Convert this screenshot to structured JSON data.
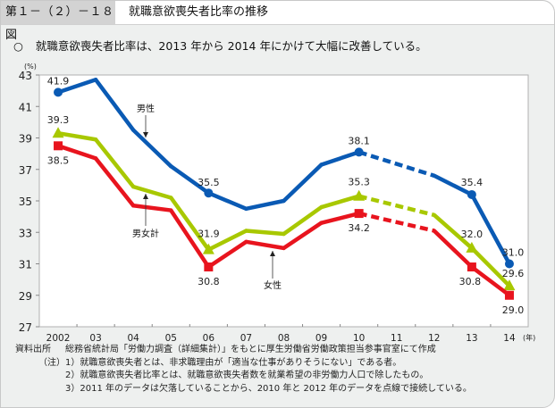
{
  "header": {
    "figure_number": "第１－（２）－１８図",
    "figure_title": "就職意欲喪失者比率の推移"
  },
  "summary": {
    "bullet": "○",
    "text": "就職意欲喪失者比率は、2013 年から 2014 年にかけて大幅に改善している。"
  },
  "chart_data": {
    "type": "line",
    "title": "就職意欲喪失者比率の推移",
    "ylabel": "(%)",
    "xlabel": "(年)",
    "ylim": [
      27,
      43
    ],
    "yticks": [
      27,
      29,
      31,
      33,
      35,
      37,
      39,
      41,
      43
    ],
    "categories": [
      "2002",
      "03",
      "04",
      "05",
      "06",
      "07",
      "08",
      "09",
      "10",
      "11",
      "12",
      "13",
      "14"
    ],
    "grid": false,
    "missing_note": "2011 missing; 2010–2012 connected with dashed line",
    "series": [
      {
        "name": "男性",
        "color": "#0a5ab4",
        "marker": "circle",
        "values": [
          41.9,
          42.7,
          39.5,
          37.2,
          35.5,
          34.5,
          35.0,
          37.3,
          38.1,
          null,
          36.6,
          35.4,
          31.0
        ],
        "labels": {
          "0": "41.9",
          "4": "35.5",
          "8": "38.1",
          "11": "35.4",
          "12": "31.0"
        }
      },
      {
        "name": "男女計",
        "color": "#a8c800",
        "marker": "triangle",
        "values": [
          39.3,
          38.9,
          35.9,
          35.2,
          31.9,
          33.1,
          32.9,
          34.6,
          35.3,
          null,
          34.1,
          32.0,
          29.6
        ],
        "labels": {
          "0": "39.3",
          "4": "31.9",
          "8": "35.3",
          "11": "32.0",
          "12": "29.6"
        }
      },
      {
        "name": "女性",
        "color": "#e8141e",
        "marker": "square",
        "values": [
          38.5,
          37.7,
          34.7,
          34.4,
          30.8,
          32.4,
          32.0,
          33.6,
          34.2,
          null,
          33.1,
          30.8,
          29.0
        ],
        "labels": {
          "0": "38.5",
          "4": "30.8",
          "8": "34.2",
          "11": "30.8",
          "12": "29.0"
        }
      }
    ],
    "annotations": [
      {
        "text": "男性",
        "series": "男性",
        "x_between": [
          "04",
          "05"
        ]
      },
      {
        "text": "男女計",
        "series": "男女計",
        "x_between": [
          "04",
          "05"
        ]
      },
      {
        "text": "女性",
        "series": "女性",
        "x_between": [
          "07",
          "08"
        ]
      }
    ]
  },
  "notes": {
    "source_label": "資料出所",
    "source_text": "総務省統計局「労働力調査（詳細集計）」をもとに厚生労働省労働政策担当参事官室にて作成",
    "note_label": "（注）",
    "items": [
      "1）就職意欲喪失者とは、非求職理由が「適当な仕事がありそうにない」である者。",
      "2）就職意欲喪失者比率とは、就職意欲喪失者数を就業希望の非労働力人口で除したもの。",
      "3）2011 年のデータは欠落していることから、2010 年と 2012 年のデータを点線で接続している。"
    ]
  }
}
